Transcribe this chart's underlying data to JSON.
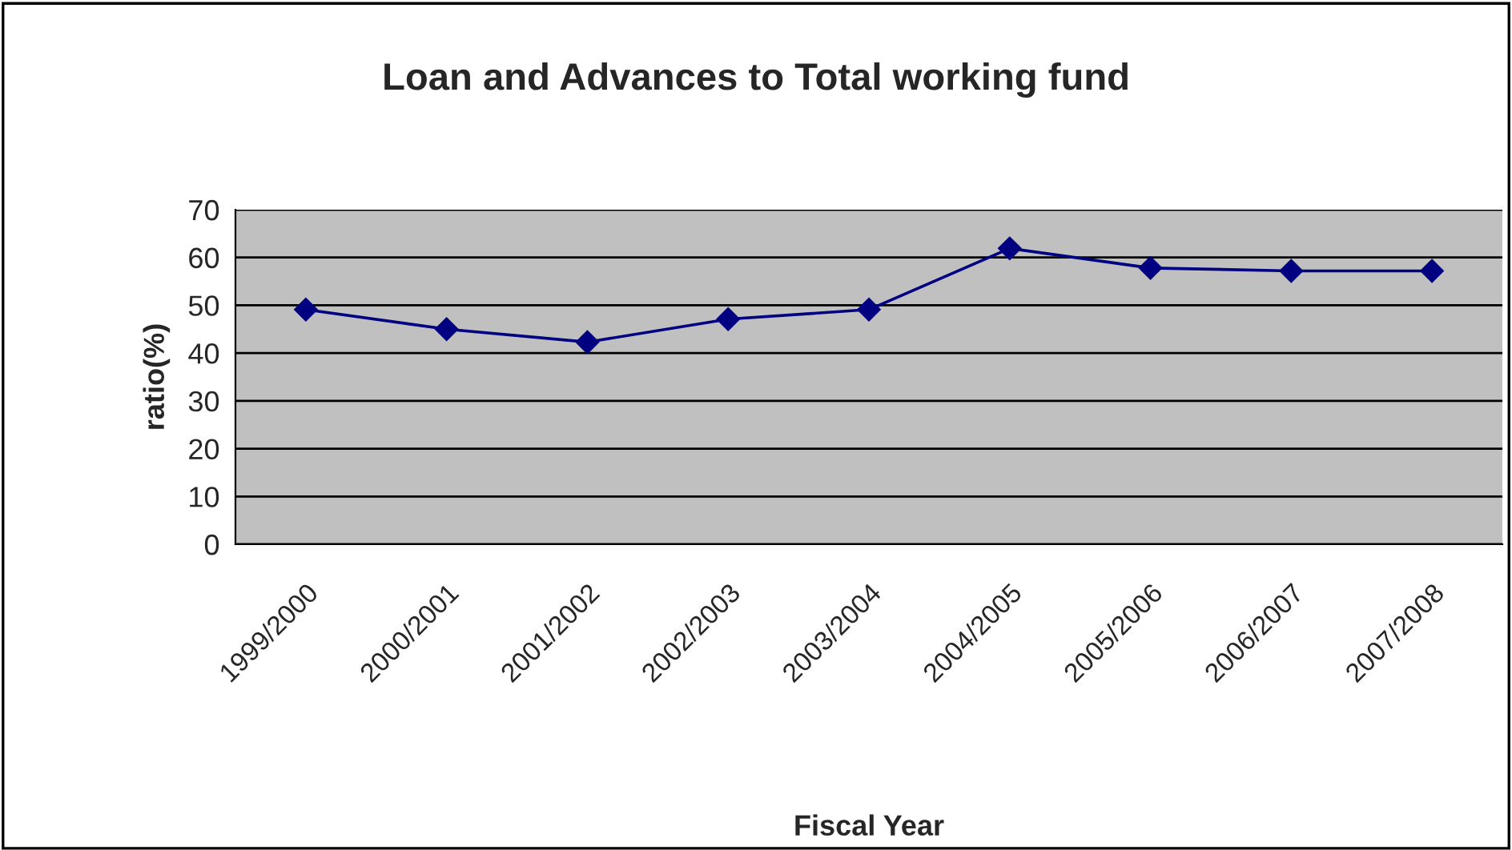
{
  "chart_data": {
    "type": "line",
    "title": "Loan and Advances to Total working fund",
    "xlabel": "Fiscal Year",
    "ylabel": "ratio(%)",
    "categories": [
      "1999/2000",
      "2000/2001",
      "2001/2002",
      "2002/2003",
      "2003/2004",
      "2004/2005",
      "2005/2006",
      "2006/2007",
      "2007/2008"
    ],
    "series": [
      {
        "color": "#000080",
        "values": [
          49.1,
          45.0,
          42.3,
          47.1,
          49.1,
          61.9,
          57.8,
          57.2,
          57.2
        ]
      }
    ],
    "ylim": [
      0,
      70
    ],
    "yticks": [
      0,
      10,
      20,
      30,
      40,
      50,
      60,
      70
    ],
    "grid": "y",
    "marker": "diamond",
    "line_style": "solid"
  }
}
